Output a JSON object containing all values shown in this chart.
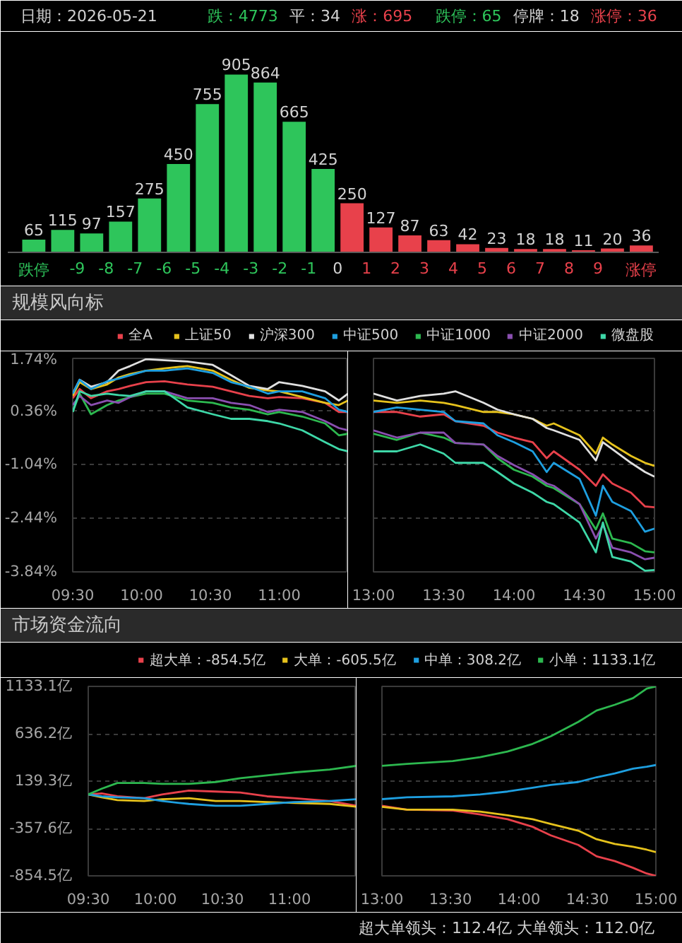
{
  "chart_data": [
    {
      "type": "bar",
      "annotations": [
        "日期：2026-05-21",
        "跌：4773",
        "平：34",
        "涨：695",
        "跌停：65",
        "停牌：18",
        "涨停：36"
      ],
      "x": [
        -10.5,
        -9.5,
        -8.5,
        -7.5,
        -6.5,
        -5.5,
        -4.5,
        -3.5,
        -2.5,
        -1.5,
        -0.5,
        0.5,
        1.5,
        2.5,
        3.5,
        4.5,
        5.5,
        6.5,
        7.5,
        8.5,
        9.5,
        10.5
      ],
      "values": [
        65,
        115,
        97,
        157,
        275,
        450,
        755,
        905,
        864,
        665,
        425,
        250,
        127,
        87,
        63,
        42,
        23,
        18,
        18,
        11,
        20,
        36
      ],
      "colors": [
        "#2ec55b",
        "#2ec55b",
        "#2ec55b",
        "#2ec55b",
        "#2ec55b",
        "#2ec55b",
        "#2ec55b",
        "#2ec55b",
        "#2ec55b",
        "#2ec55b",
        "#2ec55b",
        "#e8414b",
        "#e8414b",
        "#e8414b",
        "#e8414b",
        "#e8414b",
        "#e8414b",
        "#e8414b",
        "#e8414b",
        "#e8414b",
        "#e8414b",
        "#e8414b"
      ],
      "xlim": [
        -11.4,
        11.1
      ],
      "xticks": [
        {
          "value": -10.5,
          "label": "跌停"
        },
        -9,
        -8,
        -7,
        -6,
        -5,
        -4,
        -3,
        -2,
        -1,
        0,
        1,
        2,
        3,
        4,
        5,
        6,
        7,
        8,
        9,
        {
          "value": 10.5,
          "label": "涨停"
        }
      ],
      "data_labels": true,
      "tick_labels": "x"
    },
    {
      "type": "line",
      "title": "规模风向标",
      "x": [
        9.5,
        9.55,
        9.633,
        9.75,
        9.833,
        9.917,
        10.033,
        10.167,
        10.333,
        10.517,
        10.65,
        10.783,
        10.917,
        11,
        11.167,
        11.333,
        11.433,
        11.5
      ],
      "series": [
        {
          "name": "全A",
          "color": "#e8414b",
          "values": [
            0.7,
            0.94,
            0.7,
            0.88,
            0.94,
            1.02,
            1.12,
            1.14,
            1.06,
            1.0,
            0.88,
            0.76,
            0.7,
            0.73,
            0.7,
            0.58,
            0.34,
            0.34
          ]
        },
        {
          "name": "上证50",
          "color": "#e6c21c",
          "values": [
            0.76,
            1.12,
            0.94,
            1.06,
            1.24,
            1.33,
            1.42,
            1.48,
            1.54,
            1.42,
            1.18,
            0.97,
            0.9,
            0.88,
            0.73,
            0.58,
            0.52,
            0.64
          ]
        },
        {
          "name": "沪深300",
          "color": "#e0e0e0",
          "values": [
            0.82,
            1.18,
            1.0,
            1.12,
            1.42,
            1.54,
            1.72,
            1.69,
            1.66,
            1.57,
            1.3,
            1.02,
            0.94,
            1.12,
            1.02,
            0.88,
            0.64,
            0.82
          ]
        },
        {
          "name": "中证500",
          "color": "#1e9fe0",
          "values": [
            0.82,
            1.18,
            0.94,
            1.14,
            1.21,
            1.3,
            1.42,
            1.42,
            1.48,
            1.36,
            1.12,
            1.0,
            0.82,
            0.88,
            0.88,
            0.7,
            0.4,
            0.34
          ]
        },
        {
          "name": "中证1000",
          "color": "#2db84f",
          "values": [
            0.34,
            0.82,
            0.28,
            0.52,
            0.64,
            0.73,
            0.82,
            0.82,
            0.64,
            0.58,
            0.46,
            0.4,
            0.28,
            0.34,
            0.22,
            0.04,
            -0.27,
            -0.23
          ]
        },
        {
          "name": "中证2000",
          "color": "#8a4fb0",
          "values": [
            0.52,
            0.76,
            0.52,
            0.64,
            0.58,
            0.73,
            0.88,
            0.88,
            0.7,
            0.7,
            0.58,
            0.52,
            0.34,
            0.4,
            0.34,
            0.1,
            -0.08,
            -0.14
          ]
        },
        {
          "name": "微盘股",
          "color": "#3ed8a8",
          "values": [
            0.34,
            0.88,
            0.76,
            0.82,
            0.78,
            0.76,
            0.88,
            0.88,
            0.46,
            0.28,
            0.16,
            0.16,
            0.1,
            0.04,
            -0.14,
            -0.45,
            -0.63,
            -0.69
          ]
        }
      ],
      "xlim": [
        9.5,
        11.5
      ],
      "xticks": [
        {
          "value": 9.5,
          "label": "09:30"
        },
        {
          "value": 10,
          "label": "10:00"
        },
        {
          "value": 10.5,
          "label": "10:30"
        },
        {
          "value": 11,
          "label": "11:00"
        }
      ],
      "ylim": [
        -3.84,
        1.74
      ],
      "yticks": [
        {
          "value": 1.74,
          "label": "1.74%"
        },
        {
          "value": 0.36,
          "label": "0.36%"
        },
        {
          "value": -1.04,
          "label": "-1.04%"
        },
        {
          "value": -2.44,
          "label": "-2.44%"
        },
        {
          "value": -3.84,
          "label": "-3.84%"
        }
      ],
      "grid": "y",
      "legend": "top right"
    },
    {
      "type": "line",
      "x": [
        13,
        13.167,
        13.333,
        13.5,
        13.583,
        13.783,
        13.883,
        14,
        14.133,
        14.233,
        14.283,
        14.467,
        14.583,
        14.633,
        14.7,
        14.833,
        14.933,
        15
      ],
      "series": [
        {
          "color": "#e8414b",
          "values": [
            0.34,
            0.34,
            0.22,
            0.28,
            0.1,
            -0.02,
            -0.2,
            -0.33,
            -0.45,
            -0.87,
            -0.69,
            -1.17,
            -1.59,
            -1.29,
            -1.53,
            -1.77,
            -2.13,
            -2.15
          ]
        },
        {
          "color": "#e6c21c",
          "values": [
            0.64,
            0.58,
            0.64,
            0.58,
            0.52,
            0.34,
            0.34,
            0.28,
            0.16,
            -0.02,
            0.04,
            -0.27,
            -0.75,
            -0.33,
            -0.51,
            -0.81,
            -0.99,
            -1.07
          ]
        },
        {
          "color": "#e0e0e0",
          "values": [
            0.82,
            0.64,
            0.76,
            0.82,
            0.88,
            0.58,
            0.4,
            0.28,
            0.16,
            -0.08,
            -0.14,
            -0.39,
            -0.93,
            -0.45,
            -0.63,
            -0.99,
            -1.23,
            -1.35
          ]
        },
        {
          "color": "#1e9fe0",
          "values": [
            0.34,
            0.46,
            0.4,
            0.34,
            0.1,
            0.04,
            -0.27,
            -0.45,
            -0.69,
            -1.23,
            -0.99,
            -1.41,
            -2.37,
            -1.59,
            -2.01,
            -2.25,
            -2.79,
            -2.71
          ]
        },
        {
          "color": "#2db84f",
          "values": [
            -0.23,
            -0.39,
            -0.2,
            -0.33,
            -0.47,
            -0.51,
            -0.87,
            -1.17,
            -1.35,
            -1.59,
            -1.65,
            -2.07,
            -2.73,
            -2.31,
            -2.97,
            -3.09,
            -3.3,
            -3.33
          ]
        },
        {
          "color": "#8a4fb0",
          "values": [
            -0.14,
            -0.33,
            -0.2,
            -0.2,
            -0.47,
            -0.51,
            -0.81,
            -1.05,
            -1.29,
            -1.53,
            -1.59,
            -2.07,
            -2.97,
            -2.61,
            -3.21,
            -3.33,
            -3.51,
            -3.47
          ]
        },
        {
          "color": "#3ed8a8",
          "values": [
            -0.69,
            -0.69,
            -0.51,
            -0.75,
            -0.99,
            -0.99,
            -1.23,
            -1.53,
            -1.77,
            -2.01,
            -2.07,
            -2.55,
            -3.33,
            -2.55,
            -3.45,
            -3.57,
            -3.81,
            -3.79
          ]
        }
      ],
      "xlim": [
        13,
        15
      ],
      "xticks": [
        {
          "value": 13,
          "label": "13:00"
        },
        {
          "value": 13.5,
          "label": "13:30"
        },
        {
          "value": 14,
          "label": "14:00"
        },
        {
          "value": 14.5,
          "label": "14:30"
        },
        {
          "value": 15,
          "label": "15:00"
        }
      ],
      "ylim": [
        -3.84,
        1.74
      ],
      "yticks": [
        1.74,
        0.36,
        -1.04,
        -2.44,
        -3.84
      ],
      "grid": "y",
      "tick_labels": "x"
    },
    {
      "type": "line",
      "title": "市场资金流向",
      "x": [
        9.5,
        9.6,
        9.717,
        9.917,
        10.05,
        10.25,
        10.45,
        10.633,
        10.833,
        11.033,
        11.3,
        11.5
      ],
      "series": [
        {
          "name": "超大单：-854.5亿",
          "color": "#e8414b",
          "values": [
            0,
            10,
            -20,
            -40,
            0,
            40,
            30,
            20,
            -20,
            -40,
            -70,
            -120
          ]
        },
        {
          "name": "大单：-605.5亿",
          "color": "#e6c21c",
          "values": [
            0,
            -30,
            -60,
            -70,
            -50,
            -40,
            -70,
            -70,
            -80,
            -90,
            -100,
            -130
          ]
        },
        {
          "name": "中单：308.2亿",
          "color": "#1e9fe0",
          "values": [
            0,
            -20,
            -30,
            -40,
            -70,
            -100,
            -120,
            -120,
            -100,
            -80,
            -70,
            -50
          ]
        },
        {
          "name": "小单：1133.1亿",
          "color": "#2db84f",
          "values": [
            0,
            60,
            120,
            120,
            110,
            110,
            130,
            170,
            200,
            230,
            260,
            300
          ]
        }
      ],
      "xlim": [
        9.5,
        11.5
      ],
      "xticks": [
        {
          "value": 9.5,
          "label": "09:30"
        },
        {
          "value": 10,
          "label": "10:00"
        },
        {
          "value": 10.5,
          "label": "10:30"
        },
        {
          "value": 11,
          "label": "11:00"
        }
      ],
      "ylim": [
        -854.5,
        1133.1
      ],
      "yticks": [
        {
          "value": 1133.1,
          "label": "1133.1亿"
        },
        {
          "value": 636.2,
          "label": "636.2亿"
        },
        {
          "value": 139.3,
          "label": "139.3亿"
        },
        {
          "value": -357.6,
          "label": "-357.6亿"
        },
        {
          "value": -854.5,
          "label": "-854.5亿"
        }
      ],
      "grid": "y",
      "legend": "top right"
    },
    {
      "type": "line",
      "annotations": [
        "超大单领头：112.4亿 大单领头：112.0亿"
      ],
      "x": [
        13,
        13.183,
        13.517,
        13.717,
        13.917,
        14.1,
        14.233,
        14.433,
        14.567,
        14.7,
        14.833,
        14.933,
        15
      ],
      "series": [
        {
          "color": "#e8414b",
          "values": [
            -120,
            -160,
            -170,
            -210,
            -260,
            -340,
            -430,
            -530,
            -650,
            -700,
            -770,
            -830,
            -854.5
          ]
        },
        {
          "color": "#e6c21c",
          "values": [
            -130,
            -160,
            -160,
            -180,
            -220,
            -260,
            -310,
            -380,
            -470,
            -520,
            -550,
            -580,
            -605.5
          ]
        },
        {
          "color": "#1e9fe0",
          "values": [
            -50,
            -30,
            -20,
            0,
            30,
            70,
            100,
            130,
            180,
            220,
            270,
            290,
            308.2
          ]
        },
        {
          "color": "#2db84f",
          "values": [
            300,
            320,
            350,
            390,
            450,
            530,
            610,
            760,
            880,
            940,
            1010,
            1110,
            1133.1
          ]
        }
      ],
      "xlim": [
        13,
        15
      ],
      "xticks": [
        {
          "value": 13,
          "label": "13:00"
        },
        {
          "value": 13.5,
          "label": "13:30"
        },
        {
          "value": 14,
          "label": "14:00"
        },
        {
          "value": 14.5,
          "label": "14:30"
        },
        {
          "value": 15,
          "label": "15:00"
        }
      ],
      "ylim": [
        -854.5,
        1133.1
      ],
      "yticks": [
        1133.1,
        636.2,
        139.3,
        -357.6,
        -854.5
      ],
      "grid": "y",
      "tick_labels": "x"
    }
  ]
}
